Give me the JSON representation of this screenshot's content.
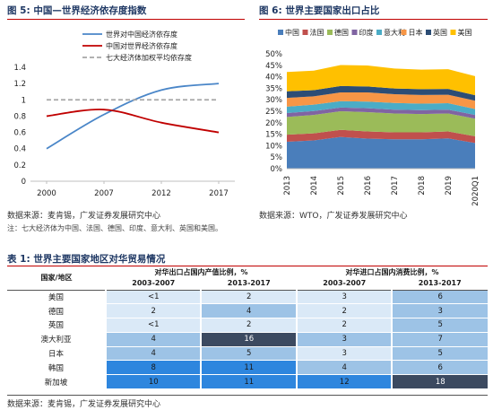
{
  "left_panel": {
    "title": "图 5:  中国—世界经济依存度指数",
    "source": "数据来源：麦肯锡，广发证券发展研究中心",
    "note": "注：七大经济体为中国、法国、德国、印度、意大利、英国和美国。"
  },
  "right_panel": {
    "title": "图 6:  世界主要国家出口占比",
    "source": "数据来源：WTO，广发证券发展研究中心"
  },
  "table": {
    "title": "表 1:  世界主要国家地区对华贸易情况",
    "header_country": "国家/地区",
    "header_group1": "对华出口占国内产值比例，%",
    "header_group2": "对华进口占国内消费比例，%",
    "period1": "2003-2007",
    "period2": "2013-2017",
    "period3": "2003-2007",
    "period4": "2013-2017",
    "rows": [
      {
        "country": "美国",
        "v": [
          "<1",
          "2",
          "3",
          "6"
        ]
      },
      {
        "country": "德国",
        "v": [
          "2",
          "4",
          "2",
          "3"
        ]
      },
      {
        "country": "英国",
        "v": [
          "<1",
          "2",
          "2",
          "5"
        ]
      },
      {
        "country": "澳大利亚",
        "v": [
          "4",
          "16",
          "3",
          "7"
        ]
      },
      {
        "country": "日本",
        "v": [
          "4",
          "5",
          "3",
          "5"
        ]
      },
      {
        "country": "韩国",
        "v": [
          "8",
          "11",
          "4",
          "6"
        ]
      },
      {
        "country": "新加坡",
        "v": [
          "10",
          "11",
          "12",
          "18"
        ]
      }
    ],
    "source": "数据来源：麦肯锡，广发证券发展研究中心",
    "colors": {
      "lightest": "#dae9f7",
      "light": "#9dc3e6",
      "mid": "#5ba3e6",
      "strong": "#2e86de",
      "darkest": "#3c4a60"
    }
  },
  "chart_data": [
    {
      "type": "line",
      "title": "",
      "categories": [
        "2000",
        "2007",
        "2012",
        "2017"
      ],
      "ylim": [
        0,
        1.4
      ],
      "yticks": [
        "0",
        "0.2",
        "0.4",
        "0.6",
        "0.8",
        "1",
        "1.2",
        "1.4"
      ],
      "series": [
        {
          "name": "世界对中国经济依存度",
          "color": "#4a86c8",
          "values": [
            0.4,
            0.82,
            1.12,
            1.2
          ]
        },
        {
          "name": "中国对世界经济依存度",
          "color": "#c00000",
          "values": [
            0.8,
            0.88,
            0.72,
            0.6
          ]
        },
        {
          "name": "七大经济体加权平均依存度",
          "color": "#a6a6a6",
          "dashed": true,
          "values": [
            1.0,
            1.0,
            1.0,
            1.0
          ]
        }
      ]
    },
    {
      "type": "area",
      "stacked": true,
      "categories": [
        "2013",
        "2014",
        "2015",
        "2016",
        "2017",
        "2018",
        "2019",
        "2020Q1"
      ],
      "ylim": [
        0,
        50
      ],
      "yticks": [
        "0%",
        "5%",
        "10%",
        "15%",
        "20%",
        "25%",
        "30%",
        "35%",
        "40%",
        "45%",
        "50%"
      ],
      "series": [
        {
          "name": "中国",
          "color": "#4a7ebb",
          "values": [
            11.7,
            12.3,
            13.8,
            13.1,
            12.8,
            12.8,
            13.2,
            11.2
          ]
        },
        {
          "name": "法国",
          "color": "#c0504d",
          "values": [
            3.1,
            3.1,
            3.1,
            3.1,
            3.0,
            3.0,
            3.0,
            2.9
          ]
        },
        {
          "name": "德国",
          "color": "#9bbb59",
          "values": [
            7.7,
            8.0,
            8.1,
            8.4,
            8.2,
            8.0,
            7.8,
            7.7
          ]
        },
        {
          "name": "印度",
          "color": "#8064a2",
          "values": [
            1.7,
            1.7,
            1.6,
            1.7,
            1.7,
            1.7,
            1.7,
            1.6
          ]
        },
        {
          "name": "意大利",
          "color": "#4bacc6",
          "values": [
            2.8,
            2.8,
            2.8,
            2.9,
            2.9,
            2.8,
            2.8,
            2.6
          ]
        },
        {
          "name": "日本",
          "color": "#f79646",
          "values": [
            3.8,
            3.6,
            3.8,
            4.0,
            3.8,
            3.8,
            3.7,
            3.6
          ]
        },
        {
          "name": "英国",
          "color": "#2c4d75",
          "values": [
            2.9,
            2.7,
            2.8,
            2.6,
            2.5,
            2.5,
            2.5,
            2.4
          ]
        },
        {
          "name": "美国",
          "color": "#ffc000",
          "values": [
            8.4,
            8.5,
            9.1,
            9.1,
            8.7,
            8.5,
            8.6,
            8.3
          ]
        }
      ]
    }
  ]
}
